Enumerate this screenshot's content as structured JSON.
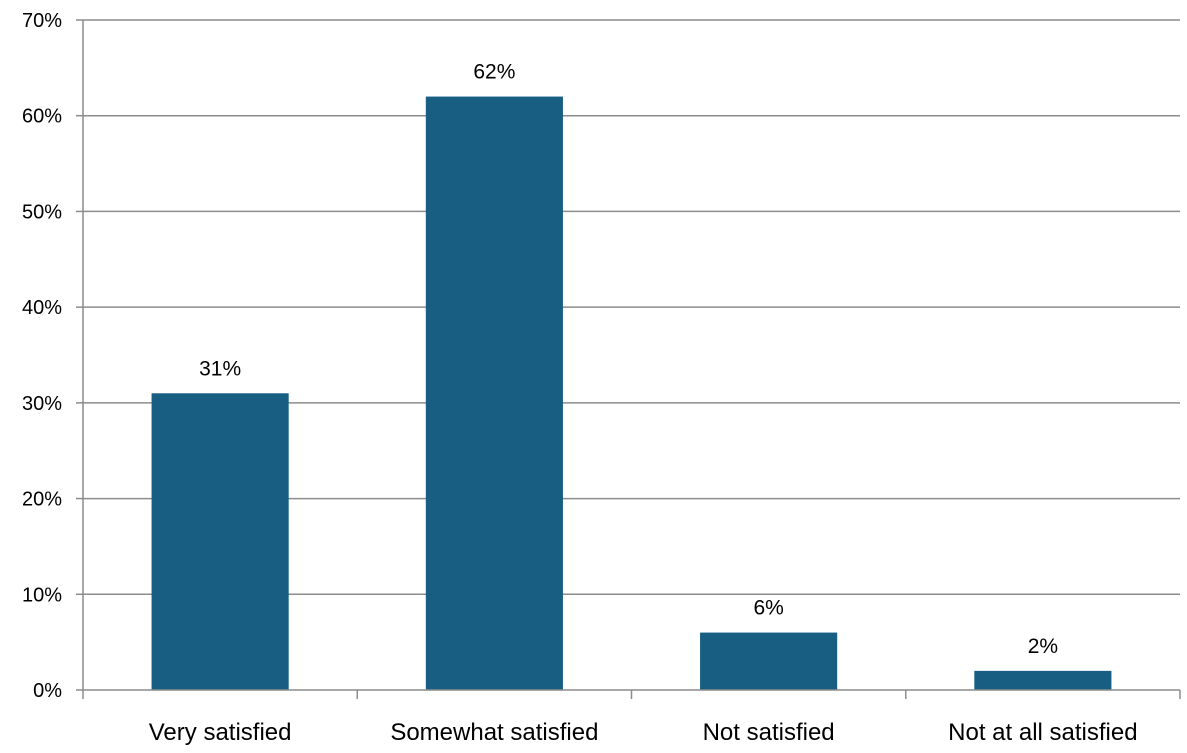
{
  "chart_data": {
    "type": "bar",
    "categories": [
      "Very satisfied",
      "Somewhat satisfied",
      "Not satisfied",
      "Not at all satisfied"
    ],
    "values": [
      31,
      62,
      6,
      2
    ],
    "data_labels": [
      "31%",
      "62%",
      "6%",
      "2%"
    ],
    "ylim": [
      0,
      70
    ],
    "y_ticks": [
      0,
      10,
      20,
      30,
      40,
      50,
      60,
      70
    ],
    "y_tick_labels": [
      "0%",
      "10%",
      "20%",
      "30%",
      "40%",
      "50%",
      "60%",
      "70%"
    ],
    "grid": true,
    "legend": "none",
    "title": "",
    "xlabel": "",
    "ylabel": "",
    "colors": {
      "bar": "#175e82",
      "grid": "#8c8c8c",
      "axis": "#8c8c8c"
    }
  }
}
